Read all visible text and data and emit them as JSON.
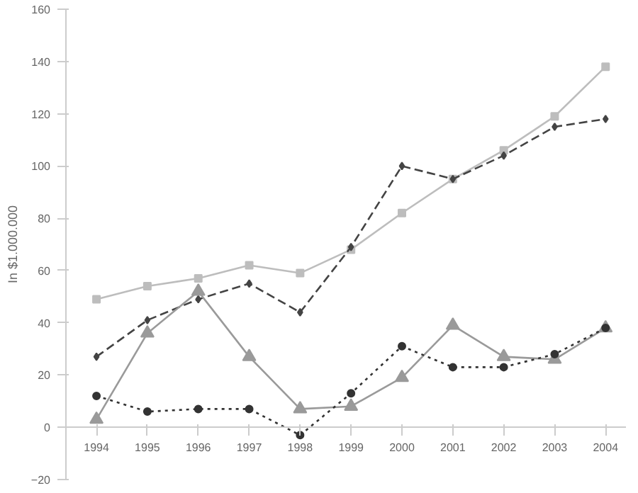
{
  "chart_data": {
    "type": "line",
    "ylabel": "In $1.000.000",
    "categories": [
      "1994",
      "1995",
      "1996",
      "1997",
      "1998",
      "1999",
      "2000",
      "2001",
      "2002",
      "2003",
      "2004"
    ],
    "series": [
      {
        "color": "#bdbdbd",
        "marker": "square",
        "line_style": "solid",
        "values": [
          49,
          54,
          57,
          62,
          59,
          68,
          82,
          95,
          106,
          119,
          138
        ]
      },
      {
        "color": "#444444",
        "marker": "diamond",
        "line_style": "dashed",
        "values": [
          27,
          41,
          49,
          55,
          44,
          69,
          100,
          95,
          104,
          115,
          118
        ]
      },
      {
        "color": "#9a9a9a",
        "marker": "triangle",
        "line_style": "solid",
        "values": [
          3,
          36,
          52,
          27,
          7,
          8,
          19,
          39,
          27,
          26,
          38
        ]
      },
      {
        "color": "#333333",
        "marker": "circle",
        "line_style": "dotted",
        "values": [
          12,
          6,
          7,
          7,
          -3,
          13,
          31,
          23,
          23,
          28,
          38
        ]
      }
    ],
    "ylim": [
      -20,
      160
    ],
    "yticks": [
      -20,
      0,
      20,
      40,
      60,
      80,
      100,
      120,
      140,
      160
    ]
  }
}
